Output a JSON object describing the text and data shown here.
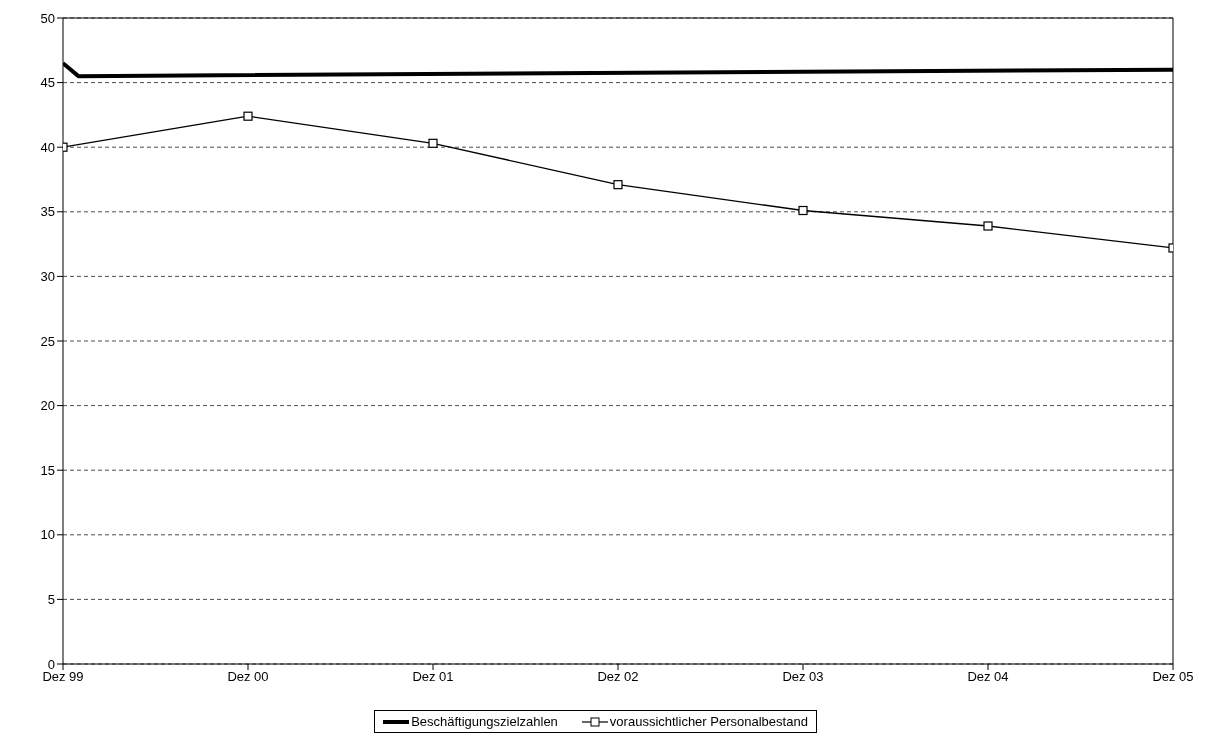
{
  "chart_data": {
    "type": "line",
    "series": [
      {
        "name": "Beschäftigungszielzahlen",
        "color": "#000000",
        "marker": "none",
        "x": [
          "1999-12",
          "2000-01",
          "2005-12"
        ],
        "values": [
          46.5,
          45.5,
          46.0
        ]
      },
      {
        "name": "voraussichtlicher Personalbestand",
        "color": "#000000",
        "marker": "square",
        "x": [
          "1999-12",
          "2000-12",
          "2001-12",
          "2002-12",
          "2003-12",
          "2004-12",
          "2005-12"
        ],
        "values": [
          40,
          42.4,
          40.3,
          37.1,
          35.1,
          33.9,
          32.2
        ]
      }
    ],
    "xlim": [
      "1999-12",
      "2005-12"
    ],
    "xticks": [
      {
        "value": "1999-12",
        "label": "Dez 99"
      },
      {
        "value": "2000-12",
        "label": "Dez 00"
      },
      {
        "value": "2001-12",
        "label": "Dez 01"
      },
      {
        "value": "2002-12",
        "label": "Dez 02"
      },
      {
        "value": "2003-12",
        "label": "Dez 03"
      },
      {
        "value": "2004-12",
        "label": "Dez 04"
      },
      {
        "value": "2005-12",
        "label": "Dez 05"
      }
    ],
    "ylim": [
      0,
      50
    ],
    "yticks": [
      0,
      5,
      10,
      15,
      20,
      25,
      30,
      35,
      40,
      45,
      50
    ],
    "grid": "y",
    "legend": "bottom",
    "line_style": "solid"
  }
}
